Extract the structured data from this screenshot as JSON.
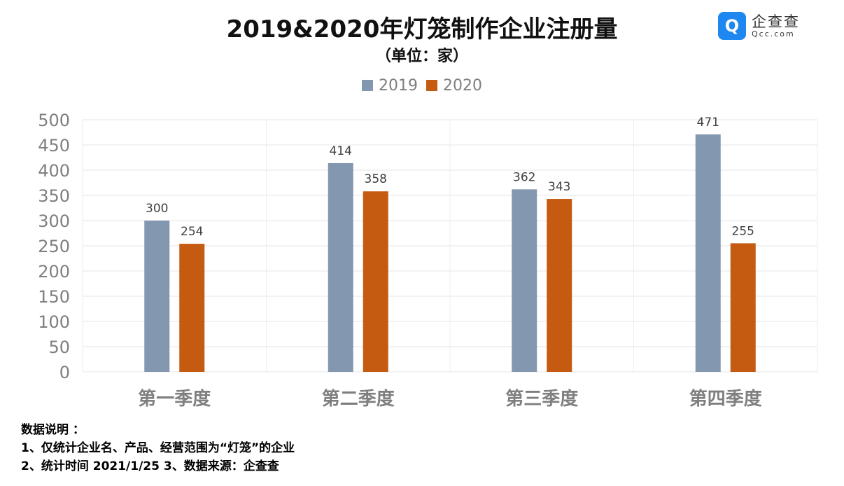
{
  "chart_data": {
    "type": "bar",
    "title": "2019&2020年灯笼制作企业注册量",
    "subtitle": "（单位：家）",
    "categories": [
      "第一季度",
      "第二季度",
      "第三季度",
      "第四季度"
    ],
    "series": [
      {
        "name": "2019",
        "color": "#8497b0",
        "values": [
          300,
          414,
          362,
          471
        ]
      },
      {
        "name": "2020",
        "color": "#c55a11",
        "values": [
          254,
          358,
          343,
          255
        ]
      }
    ],
    "ylim": [
      0,
      500
    ],
    "yticks": [
      0,
      50,
      100,
      150,
      200,
      250,
      300,
      350,
      400,
      450,
      500
    ],
    "grid": true,
    "legend": "top-center"
  },
  "logo": {
    "name": "企查查",
    "domain": "Qcc.com"
  },
  "notes": {
    "heading": "数据说明 ：",
    "line1": "1、仅统计企业名、产品、经营范围为“灯笼”的企业",
    "line2": "2、统计时间 2021/1/25   3、数据来源：企查查"
  }
}
